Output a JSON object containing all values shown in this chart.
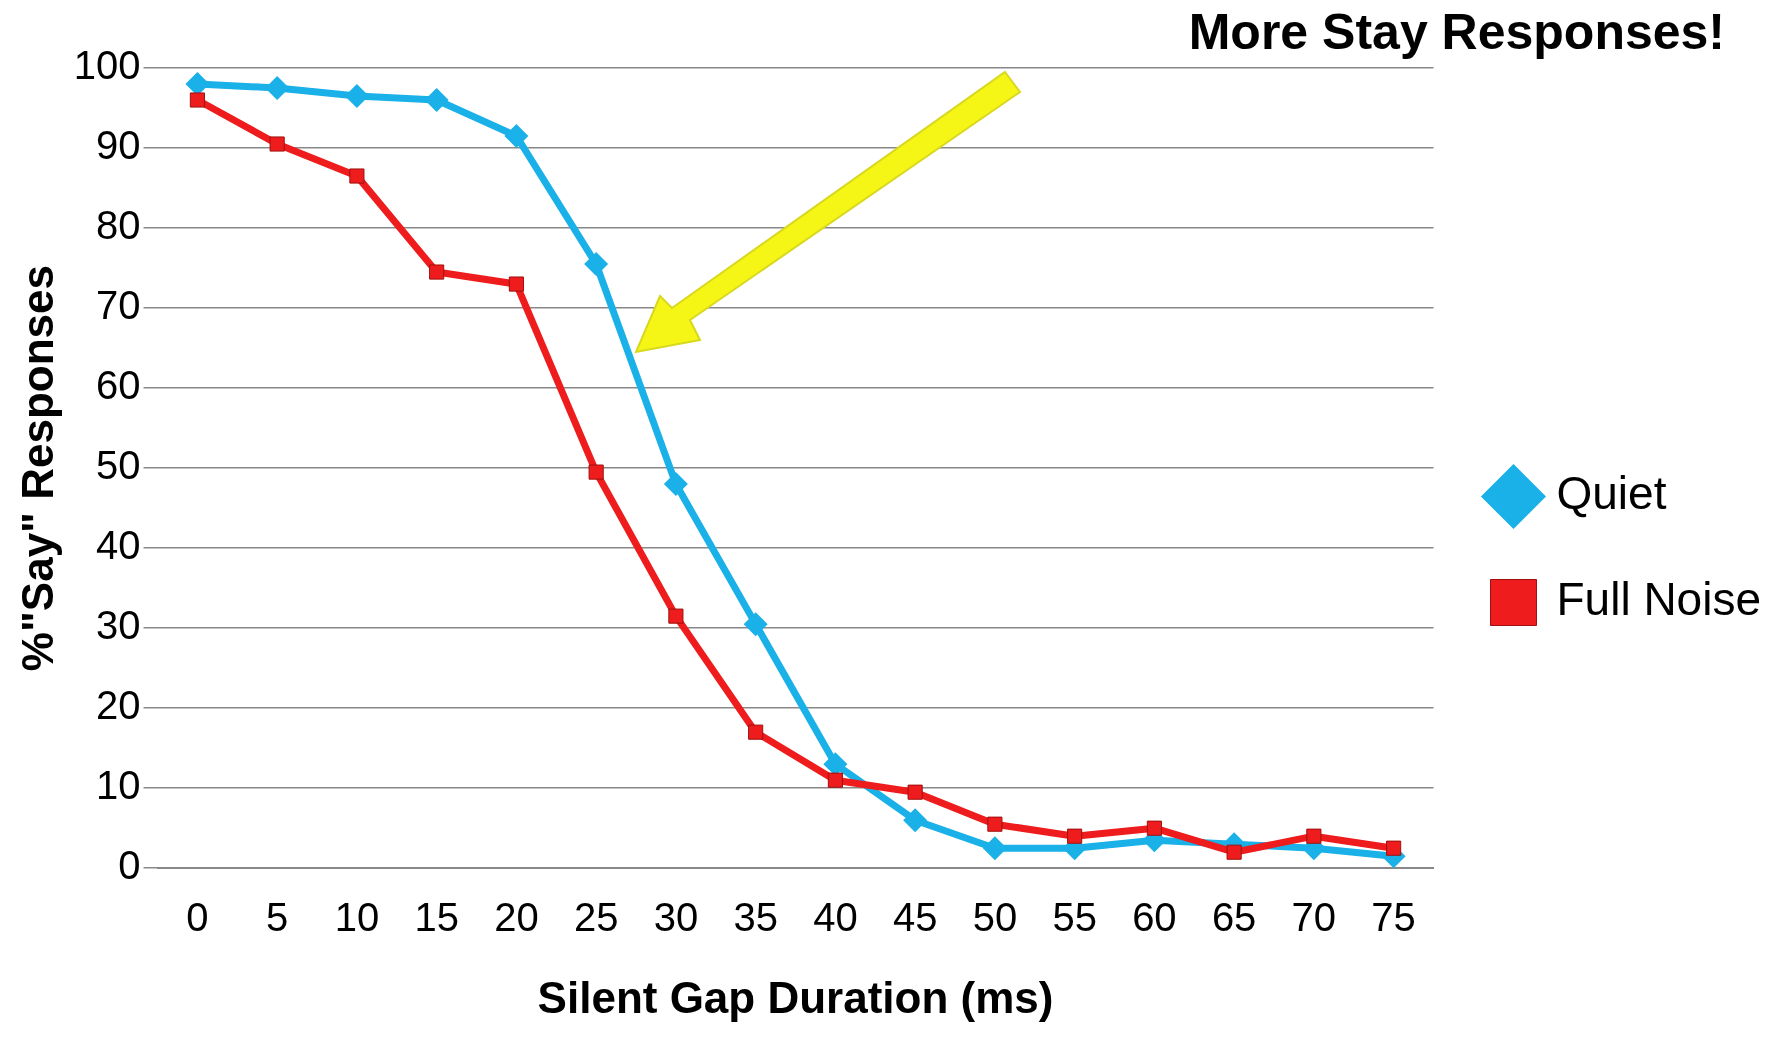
{
  "chart_data": {
    "type": "line",
    "xlabel": "Silent Gap Duration (ms)",
    "ylabel": "%\"Say\" Responses",
    "annotations": [
      "More Stay Responses!"
    ],
    "categories": [
      "0",
      "5",
      "10",
      "15",
      "20",
      "25",
      "30",
      "35",
      "40",
      "45",
      "50",
      "55",
      "60",
      "65",
      "70",
      "75"
    ],
    "series": [
      {
        "name": "Quiet",
        "color": "#1ab0e8",
        "marker": "diamond",
        "values": [
          98,
          97.5,
          96.5,
          96,
          91.5,
          75.5,
          48,
          30.5,
          13,
          6,
          2.5,
          2.5,
          3.5,
          3,
          2.5,
          1.5
        ]
      },
      {
        "name": "Full Noise",
        "color": "#ee1c1c",
        "marker": "square",
        "values": [
          96,
          90.5,
          86.5,
          74.5,
          73,
          49.5,
          31.5,
          17,
          11,
          9.5,
          5.5,
          4,
          5,
          2,
          4,
          2.5
        ]
      }
    ],
    "ylim": [
      0,
      100
    ],
    "yticks": [
      0,
      10,
      20,
      30,
      40,
      50,
      60,
      70,
      80,
      90,
      100
    ],
    "grid": "y",
    "legend": "right"
  }
}
